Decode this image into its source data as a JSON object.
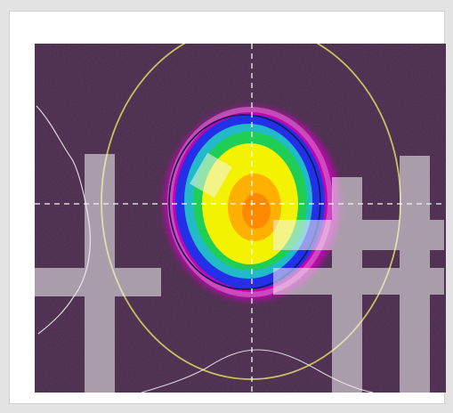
{
  "image": {
    "kind": "laser-beam-intensity-profile",
    "palette": {
      "background": "#4a2a4d",
      "outer_halo": "#d100c0",
      "blue_ring": "#2330e8",
      "cyan_ring": "#22b9c9",
      "green_ring": "#1fcf55",
      "yellow_core": "#f3f200",
      "orange_center": "#ff9a00",
      "crosshair": "#ffffff",
      "yellow_ellipse": "#c8c15f",
      "dark_contour": "#111a55",
      "watermark": "#f4f4f4"
    },
    "overlay_icons": [
      "crosshair-icon",
      "profile-curve-icon",
      "watermark-icon"
    ]
  }
}
